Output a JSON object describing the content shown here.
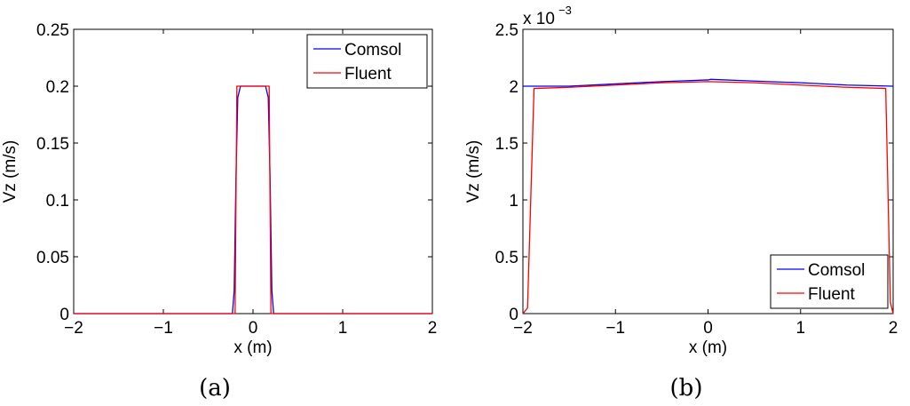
{
  "chart_data": [
    {
      "type": "line",
      "caption": "(a)",
      "xlabel": "x (m)",
      "ylabel": "Vz (m/s)",
      "xlim": [
        -2,
        2
      ],
      "ylim": [
        0,
        0.25
      ],
      "xticks": [
        -2,
        -1,
        0,
        1,
        2
      ],
      "xtick_labels": [
        "−2",
        "−1",
        "0",
        "1",
        "2"
      ],
      "yticks": [
        0,
        0.05,
        0.1,
        0.15,
        0.2,
        0.25
      ],
      "ytick_labels": [
        "0",
        "0.05",
        "0.1",
        "0.15",
        "0.2",
        "0.25"
      ],
      "legend_position": "top-right",
      "grid": false,
      "series": [
        {
          "name": "Comsol",
          "color": "#0000ff",
          "points": [
            [
              -2,
              0
            ],
            [
              -0.23,
              0
            ],
            [
              -0.21,
              0.02
            ],
            [
              -0.19,
              0.12
            ],
            [
              -0.17,
              0.19
            ],
            [
              -0.14,
              0.2
            ],
            [
              0.14,
              0.2
            ],
            [
              0.17,
              0.19
            ],
            [
              0.19,
              0.12
            ],
            [
              0.21,
              0.02
            ],
            [
              0.23,
              0
            ],
            [
              2,
              0
            ]
          ]
        },
        {
          "name": "Fluent",
          "color": "#ff0000",
          "points": [
            [
              -2,
              0
            ],
            [
              -0.2,
              0
            ],
            [
              -0.18,
              0.2
            ],
            [
              0.18,
              0.2
            ],
            [
              0.2,
              0
            ],
            [
              2,
              0
            ]
          ]
        }
      ]
    },
    {
      "type": "line",
      "caption": "(b)",
      "xlabel": "x (m)",
      "ylabel": "Vz (m/s)",
      "xlim": [
        -2,
        2
      ],
      "ylim": [
        0,
        0.0025
      ],
      "xticks": [
        -2,
        -1,
        0,
        1,
        2
      ],
      "xtick_labels": [
        "−2",
        "−1",
        "0",
        "1",
        "2"
      ],
      "yticks": [
        0,
        0.0005,
        0.001,
        0.0015,
        0.002,
        0.0025
      ],
      "ytick_labels": [
        "0",
        "0.5",
        "1",
        "1.5",
        "2",
        "2.5"
      ],
      "y_multiplier_base": "x 10",
      "y_multiplier_exponent": "−3",
      "legend_position": "bottom-right",
      "grid": false,
      "series": [
        {
          "name": "Comsol",
          "color": "#0000ff",
          "points": [
            [
              -2,
              0.002
            ],
            [
              -1.5,
              0.002
            ],
            [
              -1,
              0.00202
            ],
            [
              -0.5,
              0.00204
            ],
            [
              0,
              0.002055
            ],
            [
              0.03,
              0.00206
            ],
            [
              0.5,
              0.002045
            ],
            [
              1,
              0.00203
            ],
            [
              1.5,
              0.00201
            ],
            [
              2,
              0.002
            ]
          ]
        },
        {
          "name": "Fluent",
          "color": "#ff0000",
          "points": [
            [
              -2,
              0
            ],
            [
              -1.95,
              5e-05
            ],
            [
              -1.88,
              0.00198
            ],
            [
              -1.5,
              0.00199
            ],
            [
              -1,
              0.00201
            ],
            [
              -0.5,
              0.00203
            ],
            [
              0,
              0.00204
            ],
            [
              0.5,
              0.00203
            ],
            [
              1,
              0.00201
            ],
            [
              1.5,
              0.00199
            ],
            [
              1.92,
              0.00198
            ],
            [
              1.97,
              0.0001
            ],
            [
              2,
              0
            ]
          ]
        }
      ]
    }
  ]
}
